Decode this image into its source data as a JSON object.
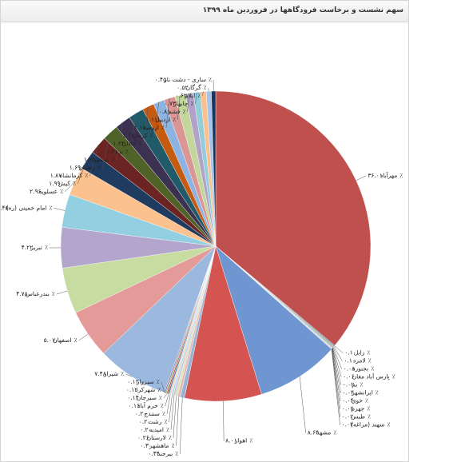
{
  "chart_data": {
    "type": "pie",
    "title": "سهم نشست و برخاست فرودگاهها در فروردین ماه ۱۳۹۹",
    "categories": [
      "مهرآباد",
      "زابل",
      "لامرد",
      "بجنورد",
      "پارس آباد مغان",
      "بم",
      "ایرانشهر",
      "خوی",
      "جهرم",
      "طبس",
      "سهند (مراغه)",
      "مشهد",
      "اهواز",
      "بیرجند",
      "ماهشهر",
      "لارستان",
      "امیدیه",
      "رشت",
      "سنندج",
      "خرم آباد",
      "سیرجان",
      "شهرکرد",
      "سبزوار",
      "شیراز",
      "اصفهان",
      "بندرعباس",
      "تبریز",
      "امام خمینی (ره)",
      "عسلویه",
      "کیش",
      "کرمانشاه",
      "زاهدان",
      "بوشهر",
      "یزد",
      "آبادان",
      "کرمان",
      "ارومیه",
      "اردبیل",
      "قشم",
      "چابهار",
      "ایلام",
      "گرگان",
      "ساری - دشت ناز"
    ],
    "values": [
      36.01,
      0.1,
      0.1,
      0.08,
      0.06,
      0.02,
      0.04,
      0.04,
      0.02,
      0.02,
      0.02,
      8.64,
      8.01,
      0.44,
      0.3,
      0.26,
      0.2,
      0.2,
      0.2,
      0.16,
      0.14,
      0.12,
      0.12,
      7.48,
      5.07,
      4.78,
      4.22,
      3.45,
      2.96,
      1.99,
      1.87,
      1.69,
      1.65,
      1.61,
      1.23,
      1.17,
      1.15,
      1.11,
      0.81,
      0.73,
      0.62,
      0.52,
      0.45
    ],
    "value_labels": [
      "۳۶.۰۱٪",
      "۰.۱۰٪",
      "۰.۱۰٪",
      "۰.۰۸٪",
      "۰.۰۶٪",
      "۰.۰۲٪",
      "۰.۰۴٪",
      "۰.۰۴٪",
      "۰.۰۲٪",
      "۰.۰۲٪",
      "۰.۰۲٪",
      "۸.۶۴٪",
      "۸.۰۱٪",
      "۰.۴۴٪",
      "۰.۳۰٪",
      "۰.۲۶٪",
      "۰.۲۰٪",
      "۰.۲۰٪",
      "۰.۲۰٪",
      "۰.۱۶٪",
      "۰.۱۴٪",
      "۰.۱۲٪",
      "۰.۱۲٪",
      "۷.۴۸٪",
      "۵.۰۷٪",
      "۴.۷۸٪",
      "۴.۲۲٪",
      "۳.۴۵٪",
      "۲.۹۶٪",
      "۱.۹۹٪",
      "۱.۸۷٪",
      "۱.۶۹٪",
      "۱.۶۵٪",
      "۱.۶۱٪",
      "۱.۲۳٪",
      "۱.۱۷٪",
      "۱.۱۵٪",
      "۱.۱۱٪",
      "۰.۸۱٪",
      "۰.۷۳٪",
      "۰.۶۲٪",
      "۰.۵۲٪",
      "۰.۴۵٪"
    ],
    "colors": [
      "#c0504d",
      "#4f81bd",
      "#9bbb59",
      "#8064a2",
      "#4bacc6",
      "#f79646",
      "#2c4d75",
      "#772c2a",
      "#5f7530",
      "#4d3b62",
      "#276a7c",
      "#6f96d0",
      "#d35450",
      "#95b3d7",
      "#e6b9b8",
      "#d7e4bd",
      "#ccc1da",
      "#b7dee8",
      "#fcd5b5",
      "#4f81bd",
      "#c0504d",
      "#9bbb59",
      "#8064a2",
      "#9bb8df",
      "#e39a98",
      "#c6dca0",
      "#b4a5cc",
      "#92cfe0",
      "#fbc28f",
      "#1f3b60",
      "#6b2422",
      "#4f6228",
      "#3d3152",
      "#215a68",
      "#c55a11",
      "#8db3e2",
      "#d99694",
      "#c3d69b",
      "#b3a2c7",
      "#92cddc",
      "#fac090",
      "#a6c4ea",
      "#17375e"
    ]
  }
}
